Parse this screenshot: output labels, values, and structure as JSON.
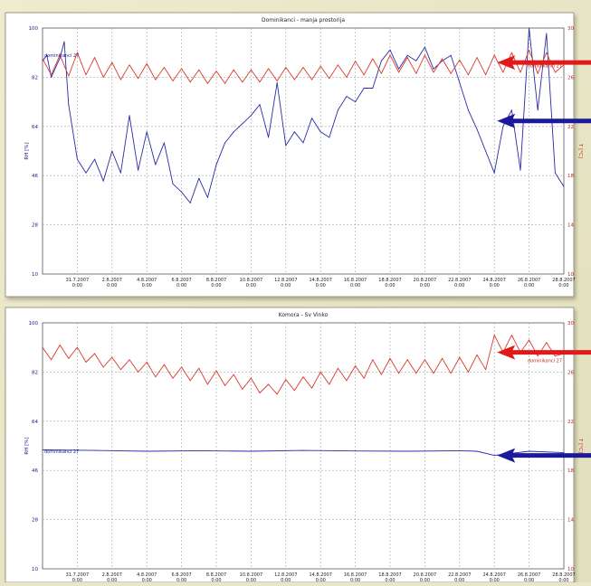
{
  "chart_data": [
    {
      "type": "line",
      "title": "Dominikanci - manja prostorija",
      "ylabel_left": "RH [%]",
      "ylabel_right": "T [°C]",
      "yticks_left": [
        "100",
        "82",
        "64",
        "46",
        "28",
        "10"
      ],
      "yticks_right": [
        "30",
        "26",
        "22",
        "18",
        "14",
        "10"
      ],
      "ylim_left": [
        10,
        100
      ],
      "ylim_right": [
        10,
        30
      ],
      "xticks": [
        {
          "date": "31.7.2007",
          "time": "0:00"
        },
        {
          "date": "2.8.2007",
          "time": "0:00"
        },
        {
          "date": "4.8.2007",
          "time": "0:00"
        },
        {
          "date": "6.8.2007",
          "time": "0:00"
        },
        {
          "date": "8.8.2007",
          "time": "0:00"
        },
        {
          "date": "10.8.2007",
          "time": "0:00"
        },
        {
          "date": "12.8.2007",
          "time": "0:00"
        },
        {
          "date": "14.8.2007",
          "time": "0:00"
        },
        {
          "date": "16.8.2007",
          "time": "0:00"
        },
        {
          "date": "18.8.2007",
          "time": "0:00"
        },
        {
          "date": "20.8.2007",
          "time": "0:00"
        },
        {
          "date": "22.8.2007",
          "time": "0:00"
        },
        {
          "date": "24.8.2007",
          "time": "0:00"
        },
        {
          "date": "26.8.2007",
          "time": "0:00"
        },
        {
          "date": "28.8.2007",
          "time": "0:00"
        }
      ],
      "xlim": [
        "29.7.2007",
        "28.8.2007"
      ],
      "grid": true,
      "legend_left": "dominikanci 27",
      "legend_right": "dominikanci 27",
      "series": [
        {
          "axis": "left",
          "color": "#2a2aa8",
          "x": [
            "29.7.2007",
            "29.7.2007 6:00",
            "29.7.2007 12:00",
            "30.7.2007",
            "30.7.2007 6:00",
            "30.7.2007 12:00",
            "31.7.2007",
            "31.7.2007 12:00",
            "1.8.2007",
            "1.8.2007 12:00",
            "2.8.2007",
            "2.8.2007 12:00",
            "3.8.2007",
            "3.8.2007 12:00",
            "4.8.2007",
            "4.8.2007 12:00",
            "5.8.2007",
            "5.8.2007 12:00",
            "6.8.2007",
            "6.8.2007 12:00",
            "7.8.2007",
            "7.8.2007 12:00",
            "8.8.2007",
            "8.8.2007 12:00",
            "9.8.2007",
            "9.8.2007 12:00",
            "10.8.2007",
            "10.8.2007 12:00",
            "11.8.2007",
            "11.8.2007 12:00",
            "12.8.2007",
            "12.8.2007 12:00",
            "13.8.2007",
            "13.8.2007 12:00",
            "14.8.2007",
            "14.8.2007 12:00",
            "15.8.2007",
            "15.8.2007 12:00",
            "16.8.2007",
            "16.8.2007 12:00",
            "17.8.2007",
            "17.8.2007 12:00",
            "18.8.2007",
            "18.8.2007 12:00",
            "19.8.2007",
            "19.8.2007 12:00",
            "20.8.2007",
            "20.8.2007 12:00",
            "21.8.2007",
            "21.8.2007 12:00",
            "22.8.2007",
            "22.8.2007 12:00",
            "23.8.2007",
            "23.8.2007 12:00",
            "24.8.2007",
            "24.8.2007 12:00",
            "25.8.2007",
            "25.8.2007 12:00",
            "26.8.2007",
            "26.8.2007 12:00",
            "27.8.2007",
            "27.8.2007 12:00",
            "28.8.2007"
          ],
          "y": [
            88,
            90,
            82,
            89,
            95,
            72,
            52,
            47,
            52,
            44,
            55,
            47,
            68,
            48,
            62,
            50,
            58,
            43,
            40,
            36,
            45,
            38,
            50,
            58,
            62,
            65,
            68,
            72,
            60,
            80,
            57,
            62,
            58,
            67,
            62,
            60,
            70,
            75,
            73,
            78,
            78,
            88,
            92,
            85,
            90,
            88,
            93,
            85,
            88,
            90,
            80,
            70,
            63,
            55,
            47,
            64,
            70,
            48,
            100,
            70,
            98,
            47,
            42
          ]
        },
        {
          "axis": "right",
          "color": "#d93a2a",
          "x": [
            "29.7.2007",
            "29.7.2007 12:00",
            "30.7.2007",
            "30.7.2007 12:00",
            "31.7.2007",
            "31.7.2007 12:00",
            "1.8.2007",
            "1.8.2007 12:00",
            "2.8.2007",
            "2.8.2007 12:00",
            "3.8.2007",
            "3.8.2007 12:00",
            "4.8.2007",
            "4.8.2007 12:00",
            "5.8.2007",
            "5.8.2007 12:00",
            "6.8.2007",
            "6.8.2007 12:00",
            "7.8.2007",
            "7.8.2007 12:00",
            "8.8.2007",
            "8.8.2007 12:00",
            "9.8.2007",
            "9.8.2007 12:00",
            "10.8.2007",
            "10.8.2007 12:00",
            "11.8.2007",
            "11.8.2007 12:00",
            "12.8.2007",
            "12.8.2007 12:00",
            "13.8.2007",
            "13.8.2007 12:00",
            "14.8.2007",
            "14.8.2007 12:00",
            "15.8.2007",
            "15.8.2007 12:00",
            "16.8.2007",
            "16.8.2007 12:00",
            "17.8.2007",
            "17.8.2007 12:00",
            "18.8.2007",
            "18.8.2007 12:00",
            "19.8.2007",
            "19.8.2007 12:00",
            "20.8.2007",
            "20.8.2007 12:00",
            "21.8.2007",
            "21.8.2007 12:00",
            "22.8.2007",
            "22.8.2007 12:00",
            "23.8.2007",
            "23.8.2007 12:00",
            "24.8.2007",
            "24.8.2007 12:00",
            "25.8.2007",
            "25.8.2007 12:00",
            "26.8.2007",
            "26.8.2007 12:00",
            "27.8.2007",
            "27.8.2007 12:00",
            "28.8.2007"
          ],
          "y": [
            27.5,
            26.2,
            27.8,
            26.1,
            28.0,
            26.2,
            27.6,
            26.0,
            27.2,
            25.8,
            27.0,
            25.9,
            27.1,
            25.8,
            26.8,
            25.7,
            26.7,
            25.6,
            26.6,
            25.5,
            26.5,
            25.5,
            26.6,
            25.6,
            26.6,
            25.6,
            26.7,
            25.7,
            26.8,
            25.8,
            26.8,
            25.8,
            26.9,
            25.9,
            27.0,
            26.0,
            27.3,
            26.2,
            27.5,
            26.3,
            27.8,
            26.4,
            27.6,
            26.3,
            27.8,
            26.4,
            27.5,
            26.3,
            27.4,
            26.2,
            27.6,
            26.2,
            27.8,
            26.4,
            28.0,
            26.4,
            28.2,
            26.3,
            28.0,
            26.4,
            27.0
          ]
        }
      ]
    },
    {
      "type": "line",
      "title": "Komora - Sv Vinko",
      "ylabel_left": "RH [%]",
      "ylabel_right": "T [°C]",
      "yticks_left": [
        "100",
        "82",
        "64",
        "46",
        "28",
        "10"
      ],
      "yticks_right": [
        "30",
        "26",
        "22",
        "18",
        "14",
        "10"
      ],
      "ylim_left": [
        10,
        100
      ],
      "ylim_right": [
        10,
        30
      ],
      "xticks": [
        {
          "date": "31.7.2007",
          "time": "0:00"
        },
        {
          "date": "2.8.2007",
          "time": "0:00"
        },
        {
          "date": "4.8.2007",
          "time": "0:00"
        },
        {
          "date": "6.8.2007",
          "time": "0:00"
        },
        {
          "date": "8.8.2007",
          "time": "0:00"
        },
        {
          "date": "10.8.2007",
          "time": "0:00"
        },
        {
          "date": "12.8.2007",
          "time": "0:00"
        },
        {
          "date": "14.8.2007",
          "time": "0:00"
        },
        {
          "date": "16.8.2007",
          "time": "0:00"
        },
        {
          "date": "18.8.2007",
          "time": "0:00"
        },
        {
          "date": "20.8.2007",
          "time": "0:00"
        },
        {
          "date": "22.8.2007",
          "time": "0:00"
        },
        {
          "date": "24.8.2007",
          "time": "0:00"
        },
        {
          "date": "26.8.2007",
          "time": "0:00"
        },
        {
          "date": "28.8.2007",
          "time": "0:00"
        }
      ],
      "xlim": [
        "29.7.2007",
        "28.8.2007"
      ],
      "grid": true,
      "legend_left": "dominikanci 27",
      "legend_right": "dominikanci 27",
      "series": [
        {
          "axis": "left",
          "color": "#2a2aa8",
          "x": [
            "29.7.2007",
            "1.8.2007",
            "4.8.2007",
            "7.8.2007",
            "10.8.2007",
            "13.8.2007",
            "16.8.2007",
            "19.8.2007",
            "22.8.2007",
            "23.8.2007",
            "24.8.2007",
            "26.8.2007",
            "28.8.2007"
          ],
          "y": [
            53.5,
            53.3,
            53.0,
            53.2,
            53.0,
            53.3,
            53.1,
            53.0,
            53.2,
            53.0,
            51.5,
            53.0,
            52.5
          ]
        },
        {
          "axis": "right",
          "color": "#d93a2a",
          "x": [
            "29.7.2007",
            "29.7.2007 12:00",
            "30.7.2007",
            "30.7.2007 12:00",
            "31.7.2007",
            "31.7.2007 12:00",
            "1.8.2007",
            "1.8.2007 12:00",
            "2.8.2007",
            "2.8.2007 12:00",
            "3.8.2007",
            "3.8.2007 12:00",
            "4.8.2007",
            "4.8.2007 12:00",
            "5.8.2007",
            "5.8.2007 12:00",
            "6.8.2007",
            "6.8.2007 12:00",
            "7.8.2007",
            "7.8.2007 12:00",
            "8.8.2007",
            "8.8.2007 12:00",
            "9.8.2007",
            "9.8.2007 12:00",
            "10.8.2007",
            "10.8.2007 12:00",
            "11.8.2007",
            "11.8.2007 12:00",
            "12.8.2007",
            "12.8.2007 12:00",
            "13.8.2007",
            "13.8.2007 12:00",
            "14.8.2007",
            "14.8.2007 12:00",
            "15.8.2007",
            "15.8.2007 12:00",
            "16.8.2007",
            "16.8.2007 12:00",
            "17.8.2007",
            "17.8.2007 12:00",
            "18.8.2007",
            "18.8.2007 12:00",
            "19.8.2007",
            "19.8.2007 12:00",
            "20.8.2007",
            "20.8.2007 12:00",
            "21.8.2007",
            "21.8.2007 12:00",
            "22.8.2007",
            "22.8.2007 12:00",
            "23.8.2007",
            "23.8.2007 12:00",
            "24.8.2007",
            "24.8.2007 12:00",
            "25.8.2007",
            "25.8.2007 12:00",
            "26.8.2007",
            "26.8.2007 12:00",
            "27.8.2007",
            "27.8.2007 12:00",
            "28.8.2007"
          ],
          "y": [
            28.0,
            27.0,
            28.2,
            27.1,
            28.0,
            26.8,
            27.5,
            26.4,
            27.2,
            26.2,
            27.0,
            26.0,
            26.8,
            25.6,
            26.6,
            25.5,
            26.4,
            25.3,
            26.3,
            25.0,
            26.1,
            24.9,
            25.8,
            24.6,
            25.5,
            24.3,
            25.0,
            24.2,
            25.4,
            24.5,
            25.6,
            24.7,
            26.0,
            25.0,
            26.3,
            25.3,
            26.5,
            25.5,
            27.0,
            25.8,
            27.1,
            25.9,
            27.0,
            25.9,
            27.0,
            25.9,
            27.1,
            25.9,
            27.2,
            26.0,
            27.4,
            26.2,
            29.0,
            27.6,
            29.0,
            27.6,
            28.6,
            27.3,
            28.4,
            27.3,
            27.5
          ]
        }
      ]
    }
  ]
}
